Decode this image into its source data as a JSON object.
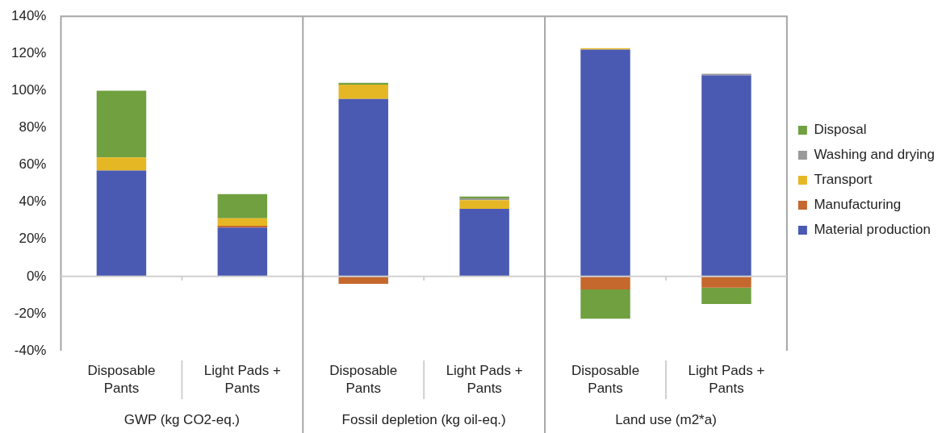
{
  "chart_data": {
    "type": "bar",
    "stacked": true,
    "categories": [
      "Disposable Pants",
      "Light Pads + Pants",
      "Disposable Pants",
      "Light Pads + Pants",
      "Disposable Pants",
      "Light Pads + Pants"
    ],
    "series": [
      {
        "name": "Material production",
        "color": "#4a5ab3",
        "values": [
          57,
          26.3,
          95.5,
          36.4,
          122.1,
          108.2
        ]
      },
      {
        "name": "Manufacturing",
        "color": "#c5682e",
        "values": [
          0,
          1,
          -4,
          0,
          -7,
          -6
        ]
      },
      {
        "name": "Transport",
        "color": "#e6b725",
        "values": [
          7,
          4,
          7.7,
          4.6,
          0.7,
          0
        ]
      },
      {
        "name": "Washing and drying",
        "color": "#999999",
        "values": [
          0,
          0,
          0,
          1,
          0,
          0.9
        ]
      },
      {
        "name": "Disposal",
        "color": "#70a040",
        "values": [
          36,
          13,
          1,
          1,
          -15.7,
          -8.8
        ]
      }
    ],
    "ylim": [
      -40,
      140
    ],
    "yticks": [
      {
        "value": -40,
        "label": "-40%"
      },
      {
        "value": -20,
        "label": "-20%"
      },
      {
        "value": 0,
        "label": "0%"
      },
      {
        "value": 20,
        "label": "20%"
      },
      {
        "value": 40,
        "label": "40%"
      },
      {
        "value": 60,
        "label": "60%"
      },
      {
        "value": 80,
        "label": "80%"
      },
      {
        "value": 100,
        "label": "100%"
      },
      {
        "value": 120,
        "label": "120%"
      },
      {
        "value": 140,
        "label": "140%"
      }
    ],
    "annotations": [
      "GWP (kg CO2-eq.)",
      "Fossil depletion (kg oil-eq.)",
      "Land use (m2*a)"
    ],
    "grid": false,
    "legend": "right"
  }
}
